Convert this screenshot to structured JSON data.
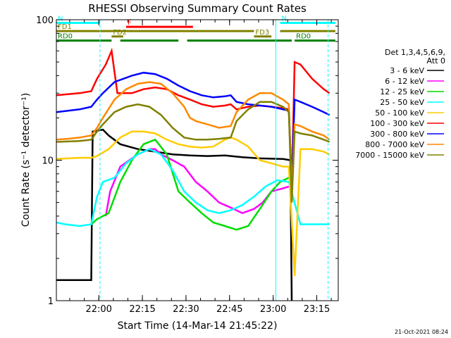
{
  "chart_data": {
    "type": "line",
    "title": "RHESSI Observing Summary Count Rates",
    "xlabel": "Start Time (14-Mar-14 21:45:22)",
    "ylabel": "Count Rate (s⁻¹ detector⁻¹)",
    "yscale": "log",
    "ylim": [
      1,
      100
    ],
    "xlim_minutes_after_start": [
      0,
      97
    ],
    "x_ticks": [
      {
        "label": "22:00",
        "minutes": 14.6
      },
      {
        "label": "22:15",
        "minutes": 29.6
      },
      {
        "label": "22:30",
        "minutes": 44.6
      },
      {
        "label": "22:45",
        "minutes": 59.6
      },
      {
        "label": "23:00",
        "minutes": 74.6
      },
      {
        "label": "23:15",
        "minutes": 89.6
      }
    ],
    "y_ticks": [
      {
        "label": "1",
        "value": 1
      },
      {
        "label": "10",
        "value": 10
      },
      {
        "label": "100",
        "value": 100
      }
    ],
    "legend_header": [
      "Det 1,3,4,5,6,9,",
      "Att 0"
    ],
    "legend_position": "top-right",
    "series": [
      {
        "name": "3 - 6 keV",
        "color": "#000000",
        "points": [
          [
            0,
            1.4
          ],
          [
            12,
            1.4
          ],
          [
            12.5,
            16
          ],
          [
            16,
            16.5
          ],
          [
            18,
            15
          ],
          [
            22,
            13
          ],
          [
            28,
            12
          ],
          [
            34,
            11.5
          ],
          [
            40,
            11
          ],
          [
            46,
            10.8
          ],
          [
            52,
            10.7
          ],
          [
            58,
            10.8
          ],
          [
            64,
            10.5
          ],
          [
            70,
            10.3
          ],
          [
            78,
            10.2
          ],
          [
            80.5,
            10
          ],
          [
            81,
            1
          ]
        ]
      },
      {
        "name": "6 - 12 keV",
        "color": "#ff00ff",
        "points": [
          [
            17,
            4
          ],
          [
            18.5,
            6
          ],
          [
            22,
            9
          ],
          [
            28,
            11
          ],
          [
            32,
            12
          ],
          [
            34,
            12
          ],
          [
            36,
            11
          ],
          [
            40,
            10
          ],
          [
            44,
            9
          ],
          [
            48,
            7
          ],
          [
            52,
            6
          ],
          [
            56,
            5
          ],
          [
            60,
            4.6
          ],
          [
            64,
            4.2
          ],
          [
            68,
            4.5
          ],
          [
            71,
            5
          ],
          [
            74,
            6
          ],
          [
            78,
            6.3
          ],
          [
            80,
            6.5
          ]
        ]
      },
      {
        "name": "12 - 25 keV",
        "color": "#00dd00",
        "points": [
          [
            12,
            3.5
          ],
          [
            14,
            3.8
          ],
          [
            16,
            4
          ],
          [
            18,
            4.2
          ],
          [
            22,
            7
          ],
          [
            26,
            10
          ],
          [
            30,
            13
          ],
          [
            34,
            14
          ],
          [
            38,
            11
          ],
          [
            42,
            6
          ],
          [
            46,
            5
          ],
          [
            50,
            4.2
          ],
          [
            54,
            3.6
          ],
          [
            58,
            3.4
          ],
          [
            62,
            3.2
          ],
          [
            66,
            3.4
          ],
          [
            70,
            4.5
          ],
          [
            74,
            6
          ],
          [
            77,
            7
          ],
          [
            80,
            7.5
          ]
        ]
      },
      {
        "name": "25 - 50 keV",
        "color": "#00ffff",
        "points": [
          [
            0,
            3.6
          ],
          [
            3,
            3.5
          ],
          [
            8,
            3.4
          ],
          [
            12,
            3.5
          ],
          [
            14,
            5.5
          ],
          [
            16,
            7
          ],
          [
            20,
            7.5
          ],
          [
            24,
            9.5
          ],
          [
            28,
            11
          ],
          [
            32,
            12
          ],
          [
            36,
            11
          ],
          [
            40,
            8.5
          ],
          [
            44,
            6
          ],
          [
            48,
            5
          ],
          [
            52,
            4.4
          ],
          [
            56,
            4.2
          ],
          [
            60,
            4.4
          ],
          [
            64,
            4.8
          ],
          [
            68,
            5.5
          ],
          [
            72,
            6.5
          ],
          [
            76,
            7.2
          ],
          [
            80,
            7
          ],
          [
            84,
            3.5
          ],
          [
            90,
            3.5
          ],
          [
            94,
            3.5
          ]
        ]
      },
      {
        "name": "50 - 100 keV",
        "color": "#ffcc00",
        "points": [
          [
            0,
            10.2
          ],
          [
            4,
            10.3
          ],
          [
            8,
            10.4
          ],
          [
            12,
            10.4
          ],
          [
            14,
            10.7
          ],
          [
            18,
            12
          ],
          [
            22,
            14.5
          ],
          [
            26,
            16
          ],
          [
            30,
            16
          ],
          [
            34,
            15.5
          ],
          [
            38,
            14
          ],
          [
            42,
            13
          ],
          [
            46,
            12.5
          ],
          [
            50,
            12.3
          ],
          [
            54,
            12.5
          ],
          [
            58,
            14
          ],
          [
            60,
            14.5
          ],
          [
            62,
            14
          ],
          [
            66,
            12.5
          ],
          [
            70,
            10
          ],
          [
            74,
            9.5
          ],
          [
            78,
            9
          ],
          [
            80,
            9
          ],
          [
            82,
            1.5
          ],
          [
            84,
            12
          ],
          [
            88,
            12
          ],
          [
            92,
            11.5
          ],
          [
            94,
            11
          ]
        ]
      },
      {
        "name": "100 - 300 keV",
        "color": "#ff0000",
        "points": [
          [
            0,
            29
          ],
          [
            4,
            29.5
          ],
          [
            8,
            30
          ],
          [
            12,
            31
          ],
          [
            14,
            38
          ],
          [
            17,
            48
          ],
          [
            19,
            60
          ],
          [
            21,
            30
          ],
          [
            26,
            30
          ],
          [
            30,
            32
          ],
          [
            34,
            33
          ],
          [
            38,
            32
          ],
          [
            42,
            29
          ],
          [
            46,
            27
          ],
          [
            50,
            25
          ],
          [
            54,
            24
          ],
          [
            58,
            24.5
          ],
          [
            60,
            25
          ],
          [
            62,
            23
          ],
          [
            66,
            24
          ],
          [
            70,
            24.5
          ],
          [
            74,
            24
          ],
          [
            78,
            23.5
          ],
          [
            80,
            23
          ],
          [
            81,
            6
          ],
          [
            82,
            50
          ],
          [
            84,
            48
          ],
          [
            88,
            38
          ],
          [
            92,
            32
          ],
          [
            94,
            30
          ]
        ]
      },
      {
        "name": "300 - 800 keV",
        "color": "#0000ff",
        "points": [
          [
            0,
            22
          ],
          [
            4,
            22.5
          ],
          [
            8,
            23
          ],
          [
            12,
            24
          ],
          [
            14,
            27
          ],
          [
            16,
            30
          ],
          [
            20,
            36
          ],
          [
            26,
            40
          ],
          [
            30,
            42
          ],
          [
            34,
            41
          ],
          [
            38,
            38
          ],
          [
            42,
            34
          ],
          [
            46,
            31
          ],
          [
            50,
            29
          ],
          [
            54,
            28
          ],
          [
            58,
            28.5
          ],
          [
            60,
            29
          ],
          [
            62,
            26
          ],
          [
            66,
            25
          ],
          [
            70,
            24.5
          ],
          [
            74,
            24
          ],
          [
            78,
            23
          ],
          [
            80,
            22.5
          ],
          [
            81,
            7
          ],
          [
            82,
            27
          ],
          [
            84,
            26
          ],
          [
            88,
            24
          ],
          [
            92,
            22
          ],
          [
            94,
            21
          ]
        ]
      },
      {
        "name": "800 - 7000 keV",
        "color": "#ff8800",
        "points": [
          [
            0,
            14
          ],
          [
            4,
            14.2
          ],
          [
            8,
            14.5
          ],
          [
            12,
            15
          ],
          [
            14,
            17
          ],
          [
            16,
            20
          ],
          [
            20,
            27
          ],
          [
            24,
            32
          ],
          [
            28,
            35
          ],
          [
            32,
            36
          ],
          [
            36,
            35
          ],
          [
            40,
            30
          ],
          [
            44,
            24
          ],
          [
            46,
            20
          ],
          [
            48,
            19
          ],
          [
            52,
            18
          ],
          [
            56,
            17
          ],
          [
            60,
            17.5
          ],
          [
            62,
            22
          ],
          [
            66,
            27
          ],
          [
            70,
            30
          ],
          [
            74,
            30
          ],
          [
            78,
            27
          ],
          [
            80,
            25
          ],
          [
            81,
            6
          ],
          [
            82,
            18
          ],
          [
            84,
            17.5
          ],
          [
            88,
            16
          ],
          [
            92,
            15
          ],
          [
            94,
            14
          ]
        ]
      },
      {
        "name": "7000 - 15000 keV",
        "color": "#808000",
        "points": [
          [
            0,
            13.5
          ],
          [
            4,
            13.6
          ],
          [
            8,
            13.7
          ],
          [
            12,
            14
          ],
          [
            14,
            16
          ],
          [
            16,
            18
          ],
          [
            20,
            22
          ],
          [
            24,
            24
          ],
          [
            28,
            25
          ],
          [
            32,
            24
          ],
          [
            36,
            21
          ],
          [
            40,
            17
          ],
          [
            44,
            14.5
          ],
          [
            48,
            14
          ],
          [
            52,
            14
          ],
          [
            56,
            14.2
          ],
          [
            60,
            14.5
          ],
          [
            62,
            19
          ],
          [
            66,
            23
          ],
          [
            70,
            26
          ],
          [
            74,
            26
          ],
          [
            78,
            24
          ],
          [
            80,
            22
          ],
          [
            81,
            5
          ],
          [
            82,
            16
          ],
          [
            84,
            15.5
          ],
          [
            88,
            15
          ],
          [
            92,
            14
          ],
          [
            94,
            13.5
          ]
        ]
      }
    ],
    "flag_bars": [
      {
        "label": "N",
        "color": "#00ffff",
        "segments": [
          [
            0,
            15
          ]
        ],
        "value": 95
      },
      {
        "label": "N",
        "color": "#00ffff",
        "segments": [
          [
            77,
            96
          ]
        ],
        "value": 95
      },
      {
        "label": "F",
        "color": "#ff0000",
        "segments": [
          [
            24,
            47
          ]
        ],
        "value": 89
      },
      {
        "label": "FD1",
        "color": "#808000",
        "segments": [
          [
            0,
            68
          ],
          [
            77,
            96
          ]
        ],
        "value": 83
      },
      {
        "label": "FD2",
        "color": "#808000",
        "segments": [
          [
            19,
            23
          ]
        ],
        "value": 76
      },
      {
        "label": "FD3",
        "color": "#808000",
        "segments": [
          [
            68,
            74
          ]
        ],
        "value": 76
      },
      {
        "label": "RD0",
        "color": "#008000",
        "segments": [
          [
            0,
            19
          ],
          [
            22,
            42
          ],
          [
            45,
            81
          ]
        ],
        "value": 71
      },
      {
        "label": "RD0",
        "color": "#008000",
        "segments": [
          [
            82,
            96
          ]
        ],
        "value": 71
      }
    ],
    "vertical_markers": [
      {
        "minutes": 0,
        "color": "#00ffff",
        "style": "solid"
      },
      {
        "minutes": 15,
        "color": "#00ffff",
        "style": "dashed"
      },
      {
        "minutes": 75.5,
        "color": "#00ffff",
        "style": "solid"
      },
      {
        "minutes": 93.5,
        "color": "#00ffff",
        "style": "dashed"
      }
    ],
    "timestamp": "21-Oct-2021 08:24"
  }
}
